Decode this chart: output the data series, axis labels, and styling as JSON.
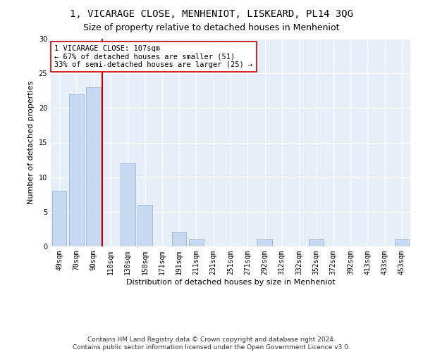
{
  "title": "1, VICARAGE CLOSE, MENHENIOT, LISKEARD, PL14 3QG",
  "subtitle": "Size of property relative to detached houses in Menheniot",
  "xlabel": "Distribution of detached houses by size in Menheniot",
  "ylabel": "Number of detached properties",
  "categories": [
    "49sqm",
    "70sqm",
    "90sqm",
    "110sqm",
    "130sqm",
    "150sqm",
    "171sqm",
    "191sqm",
    "211sqm",
    "231sqm",
    "251sqm",
    "271sqm",
    "292sqm",
    "312sqm",
    "332sqm",
    "352sqm",
    "372sqm",
    "392sqm",
    "413sqm",
    "433sqm",
    "453sqm"
  ],
  "values": [
    8,
    22,
    23,
    0,
    12,
    6,
    0,
    2,
    1,
    0,
    0,
    0,
    1,
    0,
    0,
    1,
    0,
    0,
    0,
    0,
    1
  ],
  "bar_color": "#c6d9f1",
  "bar_edge_color": "#9ab6d8",
  "vline_color": "#cc0000",
  "annotation_line1": "1 VICARAGE CLOSE: 107sqm",
  "annotation_line2": "← 67% of detached houses are smaller (51)",
  "annotation_line3": "33% of semi-detached houses are larger (25) →",
  "annotation_box_color": "white",
  "annotation_box_edge": "#cc0000",
  "ylim": [
    0,
    30
  ],
  "yticks": [
    0,
    5,
    10,
    15,
    20,
    25,
    30
  ],
  "footer": "Contains HM Land Registry data © Crown copyright and database right 2024.\nContains public sector information licensed under the Open Government Licence v3.0.",
  "plot_bg_color": "#e8eef7",
  "title_fontsize": 10,
  "subtitle_fontsize": 9,
  "xlabel_fontsize": 8,
  "ylabel_fontsize": 8,
  "tick_fontsize": 7,
  "annotation_fontsize": 7.5,
  "footer_fontsize": 6.5
}
